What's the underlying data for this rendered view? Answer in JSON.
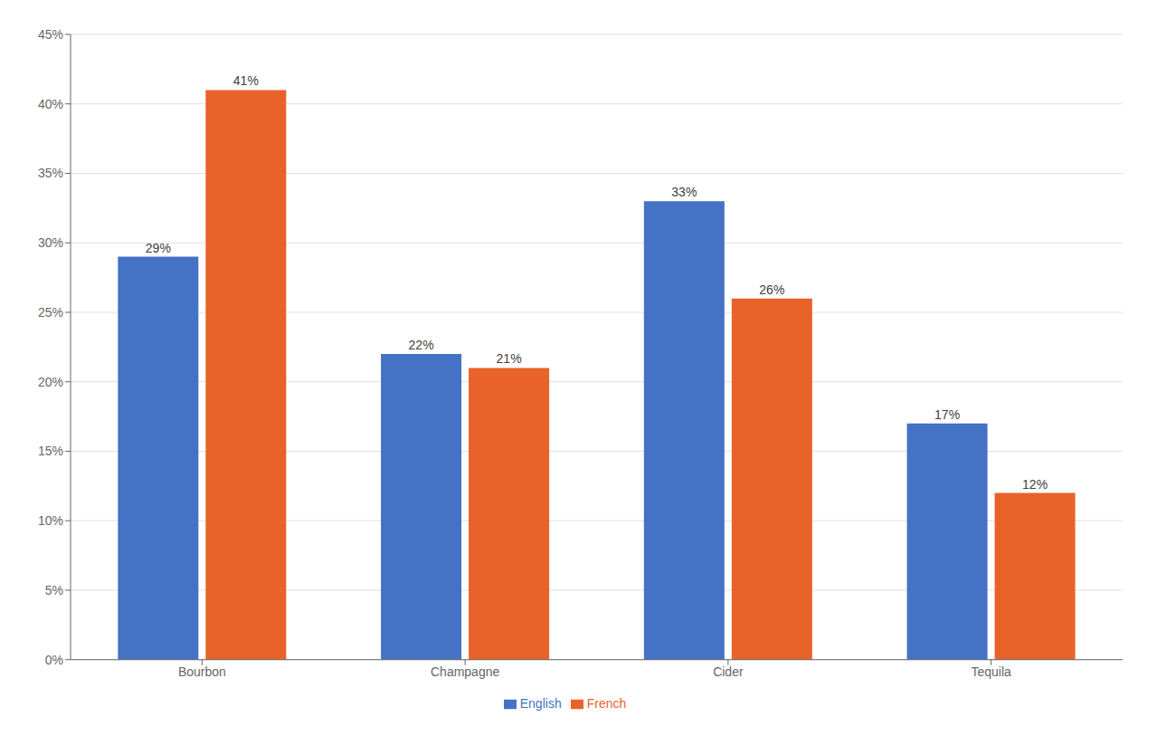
{
  "chart_data": {
    "type": "bar",
    "categories": [
      "Bourbon",
      "Champagne",
      "Cider",
      "Tequila"
    ],
    "series": [
      {
        "name": "English",
        "color": "#4472C4",
        "values": [
          0.29,
          0.22,
          0.33,
          0.17
        ],
        "value_labels": [
          "29%",
          "22%",
          "33%",
          "17%"
        ]
      },
      {
        "name": "French",
        "color": "#E8622A",
        "values": [
          0.41,
          0.21,
          0.26,
          0.12
        ],
        "value_labels": [
          "41%",
          "21%",
          "26%",
          "12%"
        ]
      }
    ],
    "ylim": [
      0,
      0.45
    ],
    "yticks": [
      {
        "value": 0.0,
        "label": "0%"
      },
      {
        "value": 0.05,
        "label": "5%"
      },
      {
        "value": 0.1,
        "label": "10%"
      },
      {
        "value": 0.15,
        "label": "15%"
      },
      {
        "value": 0.2,
        "label": "20%"
      },
      {
        "value": 0.25,
        "label": "25%"
      },
      {
        "value": 0.3,
        "label": "30%"
      },
      {
        "value": 0.35,
        "label": "35%"
      },
      {
        "value": 0.4,
        "label": "40%"
      },
      {
        "value": 0.45,
        "label": "45%"
      }
    ],
    "grid": true,
    "legend": "bottom",
    "data_labels": true
  }
}
